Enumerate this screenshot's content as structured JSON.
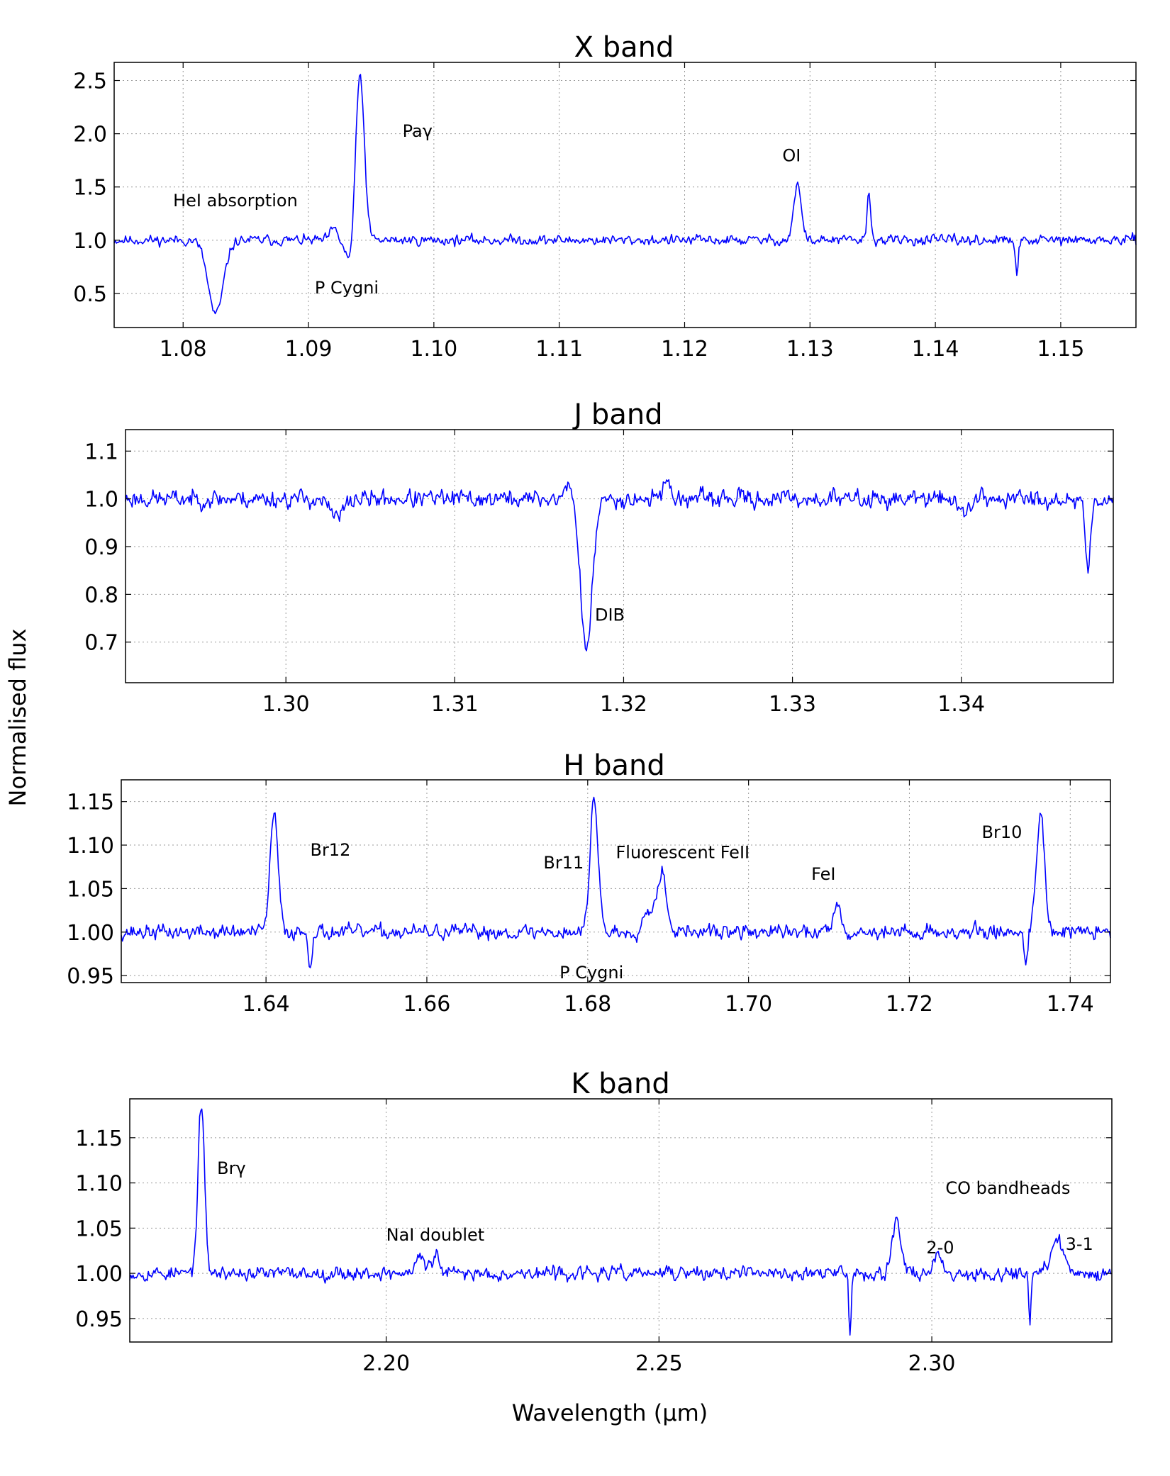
{
  "figure": {
    "ylabel": "Normalised flux",
    "xlabel": "Wavelength (µm)"
  },
  "chart_data": [
    {
      "type": "line",
      "title": "X band",
      "xlim": [
        1.0745,
        1.156
      ],
      "ylim": [
        0.18,
        2.67
      ],
      "xticks": [
        1.08,
        1.09,
        1.1,
        1.11,
        1.12,
        1.13,
        1.14,
        1.15
      ],
      "xtick_labels": [
        "1.08",
        "1.09",
        "1.10",
        "1.11",
        "1.12",
        "1.13",
        "1.14",
        "1.15"
      ],
      "yticks": [
        0.5,
        1.0,
        1.5,
        2.0,
        2.5
      ],
      "ytick_labels": [
        "0.5",
        "1.0",
        "1.5",
        "2.0",
        "2.5"
      ],
      "grid": true,
      "line_color": "#0000ff",
      "noise": 0.028,
      "seed": 11,
      "features": [
        {
          "center": 1.0826,
          "depth": -0.7,
          "width": 0.0006
        },
        {
          "center": 1.092,
          "depth": 0.1,
          "width": 0.0003
        },
        {
          "center": 1.0934,
          "depth": -0.25,
          "width": 0.0004
        },
        {
          "center": 1.0941,
          "depth": 1.6,
          "width": 0.00035
        },
        {
          "center": 1.129,
          "depth": 0.52,
          "width": 0.0003
        },
        {
          "center": 1.1347,
          "depth": 0.42,
          "width": 0.00015
        },
        {
          "center": 1.1465,
          "depth": -0.35,
          "width": 0.00012
        }
      ],
      "annotations": [
        {
          "text": "HeI absorption",
          "x": 1.0792,
          "y": 1.32
        },
        {
          "text": "Paγ",
          "x": 1.0975,
          "y": 1.97
        },
        {
          "text": "P Cygni",
          "x": 1.0905,
          "y": 0.5
        },
        {
          "text": "OI",
          "x": 1.1278,
          "y": 1.74
        }
      ]
    },
    {
      "type": "line",
      "title": "J band",
      "xlim": [
        1.2905,
        1.349
      ],
      "ylim": [
        0.615,
        1.145
      ],
      "xticks": [
        1.3,
        1.31,
        1.32,
        1.33,
        1.34
      ],
      "xtick_labels": [
        "1.30",
        "1.31",
        "1.32",
        "1.33",
        "1.34"
      ],
      "yticks": [
        0.7,
        0.8,
        0.9,
        1.0,
        1.1
      ],
      "ytick_labels": [
        "0.7",
        "0.8",
        "0.9",
        "1.0",
        "1.1"
      ],
      "grid": true,
      "line_color": "#0000ff",
      "noise": 0.011,
      "seed": 23,
      "features": [
        {
          "center": 1.303,
          "depth": -0.04,
          "width": 0.0004
        },
        {
          "center": 1.3178,
          "depth": -0.31,
          "width": 0.00035
        },
        {
          "center": 1.3168,
          "depth": 0.04,
          "width": 0.0002
        },
        {
          "center": 1.3225,
          "depth": 0.045,
          "width": 0.0002
        },
        {
          "center": 1.3475,
          "depth": -0.15,
          "width": 0.00015
        },
        {
          "center": 1.3402,
          "depth": -0.04,
          "width": 0.0002
        }
      ],
      "annotations": [
        {
          "text": "DIB",
          "x": 1.3183,
          "y": 0.745
        }
      ]
    },
    {
      "type": "line",
      "title": "H band",
      "xlim": [
        1.622,
        1.745
      ],
      "ylim": [
        0.942,
        1.175
      ],
      "xticks": [
        1.64,
        1.66,
        1.68,
        1.7,
        1.72,
        1.74
      ],
      "xtick_labels": [
        "1.64",
        "1.66",
        "1.68",
        "1.70",
        "1.72",
        "1.74"
      ],
      "yticks": [
        0.95,
        1.0,
        1.05,
        1.1,
        1.15
      ],
      "ytick_labels": [
        "0.95",
        "1.00",
        "1.05",
        "1.10",
        "1.15"
      ],
      "grid": true,
      "line_color": "#0000ff",
      "noise": 0.005,
      "seed": 37,
      "features": [
        {
          "center": 1.641,
          "depth": 0.135,
          "width": 0.0005
        },
        {
          "center": 1.6455,
          "depth": -0.04,
          "width": 0.0002
        },
        {
          "center": 1.6808,
          "depth": 0.155,
          "width": 0.0005
        },
        {
          "center": 1.6875,
          "depth": 0.025,
          "width": 0.0006
        },
        {
          "center": 1.6892,
          "depth": 0.07,
          "width": 0.0006
        },
        {
          "center": 1.711,
          "depth": 0.04,
          "width": 0.0004
        },
        {
          "center": 1.7345,
          "depth": -0.035,
          "width": 0.0002
        },
        {
          "center": 1.7363,
          "depth": 0.14,
          "width": 0.0005
        }
      ],
      "annotations": [
        {
          "text": "Br12",
          "x": 1.6455,
          "y": 1.088
        },
        {
          "text": "Br11",
          "x": 1.6745,
          "y": 1.073
        },
        {
          "text": "Fluorescent FeII",
          "x": 1.6835,
          "y": 1.085
        },
        {
          "text": "FeI",
          "x": 1.7078,
          "y": 1.06
        },
        {
          "text": "Br10",
          "x": 1.729,
          "y": 1.108
        },
        {
          "text": "P Cygni",
          "x": 1.6765,
          "y": 0.947
        }
      ]
    },
    {
      "type": "line",
      "title": "K band",
      "xlim": [
        2.153,
        2.333
      ],
      "ylim": [
        0.924,
        1.193
      ],
      "xticks": [
        2.2,
        2.25,
        2.3
      ],
      "xtick_labels": [
        "2.20",
        "2.25",
        "2.30"
      ],
      "yticks": [
        0.95,
        1.0,
        1.05,
        1.1,
        1.15
      ],
      "ytick_labels": [
        "0.95",
        "1.00",
        "1.05",
        "1.10",
        "1.15"
      ],
      "grid": true,
      "line_color": "#0000ff",
      "noise": 0.0045,
      "seed": 53,
      "features": [
        {
          "center": 2.1661,
          "depth": 0.185,
          "width": 0.0006
        },
        {
          "center": 2.2062,
          "depth": 0.02,
          "width": 0.0007
        },
        {
          "center": 2.209,
          "depth": 0.02,
          "width": 0.0007
        },
        {
          "center": 2.285,
          "depth": -0.065,
          "width": 0.0002
        },
        {
          "center": 2.2935,
          "depth": 0.06,
          "width": 0.0008
        },
        {
          "center": 2.301,
          "depth": 0.02,
          "width": 0.0008
        },
        {
          "center": 2.318,
          "depth": -0.05,
          "width": 0.0002
        },
        {
          "center": 2.323,
          "depth": 0.04,
          "width": 0.001
        }
      ],
      "annotations": [
        {
          "text": "Brγ",
          "x": 2.169,
          "y": 1.11
        },
        {
          "text": "NaI doublet",
          "x": 2.2,
          "y": 1.036
        },
        {
          "text": "CO bandheads",
          "x": 2.3025,
          "y": 1.088
        },
        {
          "text": "2-0",
          "x": 2.299,
          "y": 1.022
        },
        {
          "text": "3-1",
          "x": 2.3245,
          "y": 1.026
        }
      ]
    }
  ]
}
